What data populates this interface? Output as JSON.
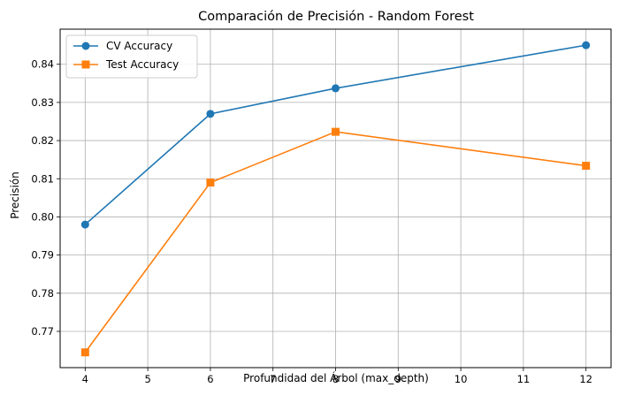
{
  "chart_data": {
    "type": "line",
    "title": "Comparación de Precisión - Random Forest",
    "xlabel": "Profundidad del Árbol (max_depth)",
    "ylabel": "Precisión",
    "xlim": [
      3.6,
      12.4
    ],
    "ylim": [
      0.7605,
      0.8492
    ],
    "xticks": [
      4,
      5,
      6,
      7,
      8,
      9,
      10,
      11,
      12
    ],
    "xtick_labels": [
      "4",
      "5",
      "6",
      "7",
      "8",
      "9",
      "10",
      "11",
      "12"
    ],
    "yticks": [
      0.77,
      0.78,
      0.79,
      0.8,
      0.81,
      0.82,
      0.83,
      0.84
    ],
    "ytick_labels": [
      "0.77",
      "0.78",
      "0.79",
      "0.80",
      "0.81",
      "0.82",
      "0.83",
      "0.84"
    ],
    "grid": true,
    "legend_position": "top-left",
    "x": [
      4,
      6,
      8,
      12
    ],
    "series": [
      {
        "name": "CV Accuracy",
        "values": [
          0.798,
          0.827,
          0.8337,
          0.845
        ],
        "color": "#1f77b4",
        "marker": "circle"
      },
      {
        "name": "Test Accuracy",
        "values": [
          0.7645,
          0.809,
          0.8223,
          0.8134
        ],
        "color": "#ff7f0e",
        "marker": "square"
      }
    ]
  }
}
